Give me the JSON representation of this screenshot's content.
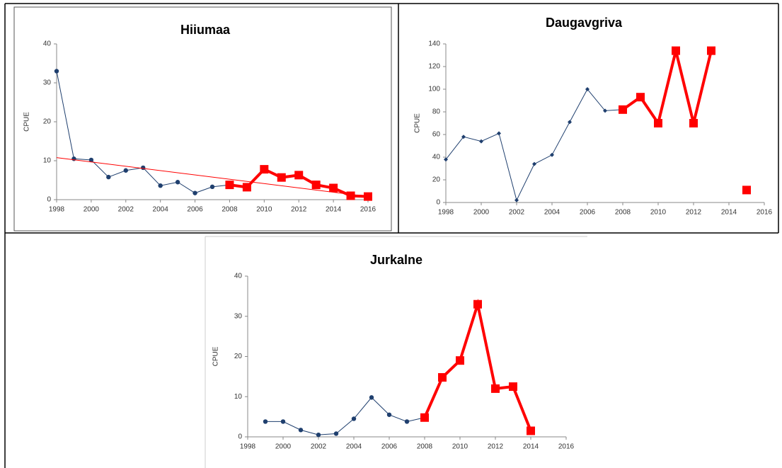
{
  "chart_data": [
    {
      "type": "line",
      "title": "Hiiumaa",
      "y_label": "CPUE",
      "xlim": [
        1998,
        2016
      ],
      "xticks": [
        1998,
        2000,
        2002,
        2004,
        2006,
        2008,
        2010,
        2012,
        2014,
        2016
      ],
      "ylim": [
        0,
        40
      ],
      "yticks": [
        0,
        10,
        20,
        30,
        40
      ],
      "series": [
        {
          "color": "#1f3f6e",
          "marker": "circle",
          "width": 1,
          "x": [
            1998,
            1999,
            2000,
            2001,
            2002,
            2003,
            2004,
            2005,
            2006,
            2007,
            2008
          ],
          "values": [
            33,
            10.5,
            10.2,
            5.8,
            7.5,
            8.2,
            3.6,
            4.5,
            1.7,
            3.3,
            3.8
          ]
        },
        {
          "color": "#ff0000",
          "marker": "square",
          "width": 4,
          "x": [
            2008,
            2009,
            2010,
            2011,
            2012,
            2013,
            2014,
            2015,
            2016
          ],
          "values": [
            3.8,
            3.2,
            7.8,
            5.7,
            6.3,
            3.8,
            3.0,
            1.0,
            0.8
          ]
        },
        {
          "color": "#ff0000",
          "marker": "none",
          "width": 1,
          "x": [
            1998,
            2016
          ],
          "values": [
            10.8,
            0.8
          ]
        }
      ]
    },
    {
      "type": "line",
      "title": "Daugavgriva",
      "y_label": "CPUE",
      "xlim": [
        1998,
        2016
      ],
      "xticks": [
        1998,
        2000,
        2002,
        2004,
        2006,
        2008,
        2010,
        2012,
        2014,
        2016
      ],
      "ylim": [
        0,
        140
      ],
      "yticks": [
        0,
        20,
        40,
        60,
        80,
        100,
        120,
        140
      ],
      "series": [
        {
          "color": "#1f3f6e",
          "marker": "diamond",
          "width": 1,
          "x": [
            1998,
            1999,
            2000,
            2001,
            2002,
            2003,
            2004,
            2005,
            2006,
            2007,
            2008
          ],
          "values": [
            38,
            58,
            54,
            61,
            2,
            34,
            42,
            71,
            100,
            81,
            82
          ]
        },
        {
          "color": "#ff0000",
          "marker": "square",
          "width": 4,
          "x": [
            2008,
            2009,
            2010,
            2011,
            2012,
            2013,
            2014,
            2015
          ],
          "values": [
            82,
            93,
            70,
            134,
            70,
            134,
            null,
            11
          ]
        }
      ]
    },
    {
      "type": "line",
      "title": "Jurkalne",
      "y_label": "CPUE",
      "xlim": [
        1998,
        2016
      ],
      "xticks": [
        1998,
        2000,
        2002,
        2004,
        2006,
        2008,
        2010,
        2012,
        2014,
        2016
      ],
      "ylim": [
        0,
        40
      ],
      "yticks": [
        0,
        10,
        20,
        30,
        40
      ],
      "series": [
        {
          "color": "#1f3f6e",
          "marker": "circle",
          "width": 1,
          "x": [
            1999,
            2000,
            2001,
            2002,
            2003,
            2004,
            2005,
            2006,
            2007,
            2008
          ],
          "values": [
            3.8,
            3.8,
            1.7,
            0.5,
            0.8,
            4.5,
            9.8,
            5.5,
            3.8,
            4.8
          ]
        },
        {
          "color": "#ff0000",
          "marker": "square",
          "width": 4,
          "x": [
            2008,
            2009,
            2010,
            2011,
            2012,
            2013,
            2014
          ],
          "values": [
            4.8,
            14.8,
            19,
            33,
            12,
            12.5,
            1.5
          ]
        }
      ]
    }
  ]
}
